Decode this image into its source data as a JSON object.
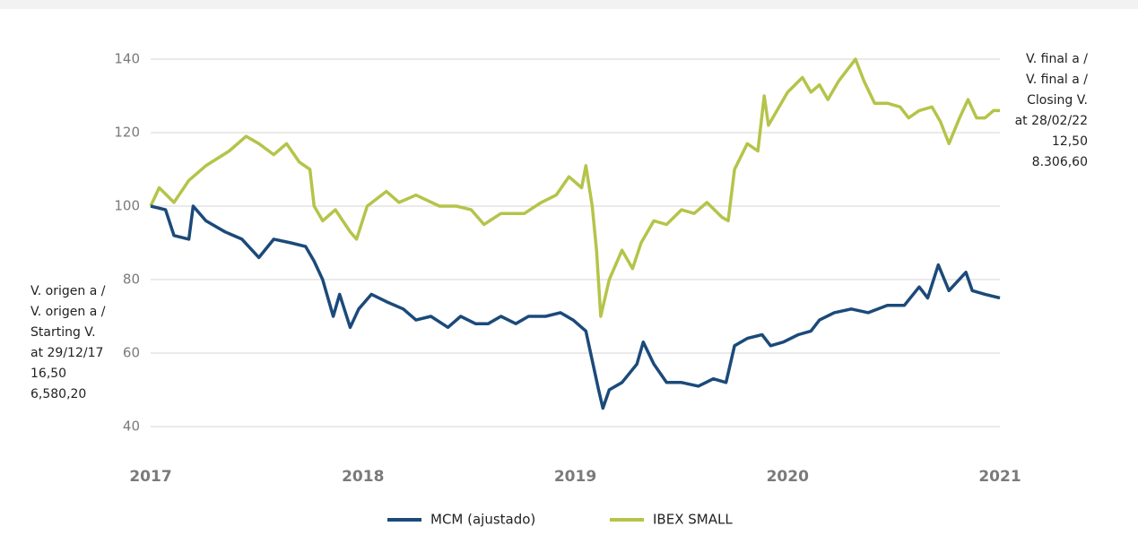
{
  "chart_data": {
    "type": "line",
    "xlim": [
      2017,
      2021
    ],
    "xticks": [
      2017,
      2018,
      2019,
      2020,
      2021
    ],
    "ylim": [
      40,
      140
    ],
    "yticks": [
      40,
      60,
      80,
      100,
      120,
      140
    ],
    "grid": true,
    "series": [
      {
        "name": "MCM (ajustado)",
        "color": "#1b4a7a",
        "x": [
          2017.0,
          2017.07,
          2017.11,
          2017.18,
          2017.2,
          2017.26,
          2017.35,
          2017.43,
          2017.51,
          2017.58,
          2017.66,
          2017.73,
          2017.77,
          2017.81,
          2017.86,
          2017.89,
          2017.94,
          2017.98,
          2018.04,
          2018.11,
          2018.19,
          2018.25,
          2018.32,
          2018.4,
          2018.46,
          2018.53,
          2018.59,
          2018.65,
          2018.72,
          2018.78,
          2018.86,
          2018.93,
          2018.99,
          2019.05,
          2019.08,
          2019.11,
          2019.13,
          2019.16,
          2019.22,
          2019.29,
          2019.32,
          2019.37,
          2019.43,
          2019.5,
          2019.58,
          2019.65,
          2019.71,
          2019.75,
          2019.81,
          2019.88,
          2019.92,
          2019.98,
          2020.05,
          2020.11,
          2020.15,
          2020.22,
          2020.3,
          2020.38,
          2020.47,
          2020.55,
          2020.62,
          2020.66,
          2020.71,
          2020.76,
          2020.84,
          2020.87,
          2020.93,
          2021.0
        ],
        "values": [
          100,
          99,
          92,
          91,
          100,
          96,
          93,
          91,
          86,
          91,
          90,
          89,
          85,
          80,
          70,
          76,
          67,
          72,
          76,
          74,
          72,
          69,
          70,
          67,
          70,
          68,
          68,
          70,
          68,
          70,
          70,
          71,
          69,
          66,
          58,
          50,
          45,
          50,
          52,
          57,
          63,
          57,
          52,
          52,
          51,
          53,
          52,
          62,
          64,
          65,
          62,
          63,
          65,
          66,
          69,
          71,
          72,
          71,
          73,
          73,
          78,
          75,
          84,
          77,
          82,
          77,
          76,
          75
        ]
      },
      {
        "name": "IBEX SMALL",
        "color": "#b5c449",
        "x": [
          2017.0,
          2017.04,
          2017.11,
          2017.18,
          2017.26,
          2017.37,
          2017.45,
          2017.51,
          2017.58,
          2017.64,
          2017.7,
          2017.75,
          2017.77,
          2017.81,
          2017.87,
          2017.94,
          2017.97,
          2018.02,
          2018.11,
          2018.17,
          2018.25,
          2018.36,
          2018.44,
          2018.51,
          2018.57,
          2018.65,
          2018.76,
          2018.84,
          2018.91,
          2018.97,
          2019.03,
          2019.05,
          2019.08,
          2019.1,
          2019.12,
          2019.16,
          2019.22,
          2019.27,
          2019.31,
          2019.37,
          2019.43,
          2019.5,
          2019.56,
          2019.62,
          2019.69,
          2019.72,
          2019.75,
          2019.81,
          2019.86,
          2019.89,
          2019.91,
          2019.96,
          2020.0,
          2020.07,
          2020.11,
          2020.15,
          2020.19,
          2020.24,
          2020.28,
          2020.32,
          2020.36,
          2020.41,
          2020.47,
          2020.53,
          2020.57,
          2020.62,
          2020.68,
          2020.72,
          2020.76,
          2020.81,
          2020.85,
          2020.89,
          2020.93,
          2020.97,
          2021.0
        ],
        "values": [
          100,
          105,
          101,
          107,
          111,
          115,
          119,
          117,
          114,
          117,
          112,
          110,
          100,
          96,
          99,
          93,
          91,
          100,
          104,
          101,
          103,
          100,
          100,
          99,
          95,
          98,
          98,
          101,
          103,
          108,
          105,
          111,
          100,
          88,
          70,
          80,
          88,
          83,
          90,
          96,
          95,
          99,
          98,
          101,
          97,
          96,
          110,
          117,
          115,
          130,
          122,
          127,
          131,
          135,
          131,
          133,
          129,
          134,
          137,
          140,
          134,
          128,
          128,
          127,
          124,
          126,
          127,
          123,
          117,
          124,
          129,
          124,
          124,
          126,
          126
        ]
      }
    ],
    "start_note": [
      {
        "text": "V. origen a /"
      },
      {
        "text": "V. origen a /"
      },
      {
        "text": "Starting V."
      },
      {
        "text": "at 29/12/17"
      },
      {
        "text": "16,50",
        "color": "#1b4a7a"
      },
      {
        "text": "6,580,20",
        "color": "#b5c449"
      }
    ],
    "end_note": [
      {
        "text": "V. final a /"
      },
      {
        "text": "V. final a /"
      },
      {
        "text": "Closing V."
      },
      {
        "text": "at 28/02/22"
      },
      {
        "text": "12,50",
        "color": "#1b4a7a"
      },
      {
        "text": "8.306,60",
        "color": "#b5c449"
      }
    ]
  }
}
